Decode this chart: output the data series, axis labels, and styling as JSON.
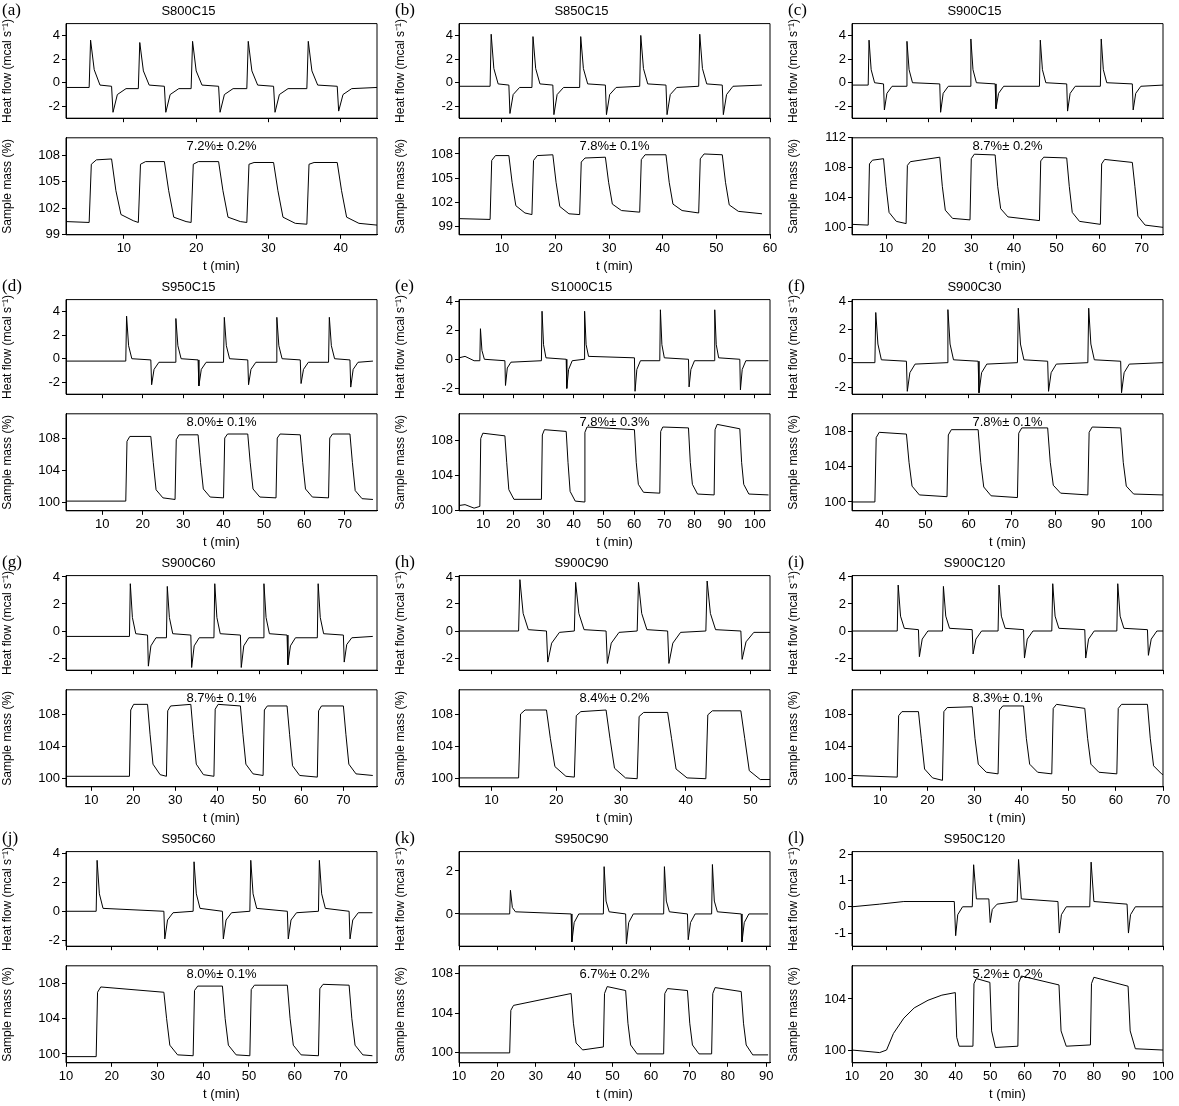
{
  "chart_data": [
    {
      "type": "line",
      "title": "S800C15",
      "ylabel": "Heat flow (mcal s⁻¹)",
      "annotations": [
        "(a)"
      ],
      "color": "#000000",
      "xlim": [
        2,
        45
      ],
      "xticks": [
        10,
        20,
        30,
        40
      ],
      "ylim": [
        -3,
        5
      ],
      "yticks": [
        -2,
        0,
        2,
        4
      ],
      "tick_labels": "y",
      "x": [
        2,
        5.2,
        5.4,
        5.9,
        6.7,
        8.3,
        8.5,
        9.1,
        10.3,
        12.0,
        12.2,
        12.7,
        13.5,
        15.6,
        15.8,
        16.4,
        17.6,
        19.3,
        19.5,
        20.0,
        20.8,
        23.1,
        23.3,
        23.9,
        25.1,
        27.0,
        27.2,
        27.7,
        28.5,
        30.7,
        30.9,
        31.5,
        32.7,
        35.3,
        35.5,
        36.0,
        36.8,
        39.5,
        39.7,
        40.3,
        41.5,
        45
      ],
      "values": [
        -0.4,
        -0.4,
        3.6,
        1.1,
        -0.2,
        -0.3,
        -2.5,
        -1.0,
        -0.5,
        -0.5,
        3.4,
        1.0,
        -0.2,
        -0.3,
        -2.5,
        -1.0,
        -0.5,
        -0.5,
        3.5,
        1.0,
        -0.2,
        -0.3,
        -2.5,
        -1.0,
        -0.5,
        -0.5,
        3.5,
        1.0,
        -0.2,
        -0.3,
        -2.5,
        -1.0,
        -0.5,
        -0.5,
        3.5,
        1.0,
        -0.2,
        -0.3,
        -2.4,
        -1.0,
        -0.5,
        -0.4
      ]
    },
    {
      "type": "line",
      "xlabel": "t (min)",
      "ylabel": "Sample mass (%)",
      "annotations": [
        "7.2%± 0.2%"
      ],
      "color": "#000000",
      "xlim": [
        2,
        45
      ],
      "xticks": [
        10,
        20,
        30,
        40
      ],
      "ylim": [
        99,
        110
      ],
      "yticks": [
        99,
        102,
        105,
        108
      ],
      "x": [
        2,
        5.2,
        5.5,
        6.2,
        8.3,
        8.9,
        9.6,
        11.3,
        12.0,
        12.3,
        13.0,
        15.6,
        16.2,
        16.9,
        18.6,
        19.3,
        19.6,
        20.3,
        23.1,
        23.7,
        24.4,
        26.1,
        27.0,
        27.3,
        28.0,
        30.7,
        31.3,
        32.0,
        33.7,
        35.3,
        35.6,
        36.3,
        39.5,
        40.1,
        40.8,
        42.5,
        45
      ],
      "values": [
        100.5,
        100.4,
        107.0,
        107.5,
        107.6,
        104.0,
        101.3,
        100.6,
        100.4,
        107.0,
        107.3,
        107.3,
        104.0,
        101.0,
        100.5,
        100.4,
        107.0,
        107.3,
        107.3,
        104.0,
        101.0,
        100.5,
        100.4,
        107.0,
        107.2,
        107.2,
        104.0,
        101.0,
        100.3,
        100.2,
        107.0,
        107.2,
        107.2,
        104.0,
        101.0,
        100.3,
        100.1
      ]
    },
    {
      "type": "line",
      "title": "S850C15",
      "ylabel": "Heat flow (mcal s⁻¹)",
      "annotations": [
        "(b)"
      ],
      "color": "#000000",
      "xlim": [
        2,
        60
      ],
      "xticks": [
        10,
        20,
        30,
        40,
        50,
        60
      ],
      "ylim": [
        -3,
        5
      ],
      "yticks": [
        -2,
        0,
        2,
        4
      ],
      "tick_labels": "y",
      "x": [
        2,
        7.8,
        8.0,
        8.5,
        9.3,
        11.3,
        11.5,
        12.1,
        13.3,
        15.6,
        15.8,
        16.3,
        17.1,
        19.5,
        19.7,
        20.3,
        21.5,
        24.5,
        24.7,
        25.2,
        26.0,
        29.3,
        29.5,
        30.1,
        31.3,
        35.7,
        35.9,
        36.4,
        37.2,
        40.6,
        40.8,
        41.4,
        42.6,
        46.7,
        46.9,
        47.4,
        48.2,
        51.1,
        51.3,
        51.9,
        53.1,
        58.5
      ],
      "values": [
        -0.3,
        -0.3,
        4.1,
        1.2,
        -0.1,
        -0.2,
        -2.6,
        -1.0,
        -0.4,
        -0.4,
        3.9,
        1.2,
        -0.1,
        -0.2,
        -2.7,
        -1.0,
        -0.4,
        -0.4,
        3.9,
        1.2,
        -0.1,
        -0.2,
        -2.7,
        -1.0,
        -0.4,
        -0.3,
        4.0,
        1.2,
        -0.1,
        -0.2,
        -2.7,
        -1.0,
        -0.4,
        -0.3,
        4.1,
        1.2,
        -0.1,
        -0.2,
        -2.7,
        -1.0,
        -0.3,
        -0.2
      ]
    },
    {
      "type": "line",
      "xlabel": "t (min)",
      "ylabel": "Sample mass (%)",
      "annotations": [
        "7.8%± 0.1%"
      ],
      "color": "#000000",
      "xlim": [
        2,
        60
      ],
      "xticks": [
        10,
        20,
        30,
        40,
        50,
        60
      ],
      "ylim": [
        98,
        110
      ],
      "yticks": [
        99,
        102,
        105,
        108
      ],
      "x": [
        2,
        7.8,
        8.1,
        8.8,
        11.3,
        11.9,
        12.6,
        14.3,
        15.6,
        15.9,
        16.6,
        19.5,
        20.1,
        20.8,
        22.5,
        24.5,
        24.8,
        25.5,
        29.3,
        29.9,
        30.6,
        32.3,
        35.7,
        36.0,
        36.7,
        40.6,
        41.2,
        41.9,
        43.6,
        46.7,
        47.0,
        47.7,
        51.1,
        51.7,
        52.4,
        54.1,
        58.5
      ],
      "values": [
        100.0,
        99.9,
        107.2,
        107.8,
        107.8,
        104.5,
        101.6,
        100.7,
        100.5,
        107.2,
        107.8,
        107.9,
        104.5,
        101.5,
        100.6,
        100.5,
        107.0,
        107.5,
        107.6,
        104.5,
        101.8,
        101.0,
        100.8,
        107.3,
        107.9,
        107.9,
        104.5,
        101.8,
        101.0,
        100.7,
        107.4,
        108.0,
        107.9,
        104.5,
        101.7,
        100.9,
        100.6
      ]
    },
    {
      "type": "line",
      "title": "S900C15",
      "ylabel": "Heat flow (mcal s⁻¹)",
      "annotations": [
        "(c)"
      ],
      "color": "#000000",
      "xlim": [
        2,
        75
      ],
      "xticks": [
        10,
        20,
        30,
        40,
        50,
        60,
        70
      ],
      "ylim": [
        -3,
        5
      ],
      "yticks": [
        -2,
        0,
        2,
        4
      ],
      "tick_labels": "y",
      "x": [
        2,
        5.8,
        6.0,
        6.5,
        7.3,
        9.4,
        9.6,
        10.2,
        11.4,
        14.7,
        14.9,
        15.4,
        16.2,
        22.6,
        22.8,
        23.4,
        24.6,
        29.7,
        29.9,
        30.4,
        31.2,
        35.6,
        35.8,
        36.4,
        37.6,
        46.0,
        46.2,
        46.7,
        47.5,
        52.4,
        52.6,
        53.2,
        54.4,
        60.3,
        60.5,
        61.0,
        61.8,
        67.8,
        68.0,
        68.6,
        69.8,
        75
      ],
      "values": [
        -0.2,
        -0.2,
        3.6,
        1.1,
        0.0,
        -0.1,
        -2.3,
        -0.9,
        -0.3,
        -0.3,
        3.5,
        1.1,
        0.0,
        -0.1,
        -2.5,
        -0.9,
        -0.3,
        -0.3,
        3.7,
        1.1,
        0.0,
        -0.1,
        -2.2,
        -0.9,
        -0.3,
        -0.3,
        3.6,
        1.1,
        0.0,
        -0.1,
        -2.4,
        -0.9,
        -0.3,
        -0.3,
        3.7,
        1.1,
        0.0,
        -0.1,
        -2.3,
        -0.9,
        -0.3,
        -0.2
      ]
    },
    {
      "type": "line",
      "xlabel": "t (min)",
      "ylabel": "Sample mass (%)",
      "annotations": [
        "8.7%± 0.2%"
      ],
      "color": "#000000",
      "xlim": [
        2,
        75
      ],
      "xticks": [
        10,
        20,
        30,
        40,
        50,
        60,
        70
      ],
      "ylim": [
        99,
        112
      ],
      "yticks": [
        100,
        104,
        108,
        112
      ],
      "x": [
        2,
        5.8,
        6.1,
        6.8,
        9.4,
        10.0,
        10.7,
        12.4,
        14.7,
        15.0,
        15.7,
        22.6,
        23.2,
        23.9,
        25.6,
        29.7,
        30.0,
        30.7,
        35.6,
        36.2,
        36.9,
        38.6,
        46.0,
        46.3,
        47.0,
        52.4,
        53.0,
        53.7,
        55.4,
        60.3,
        60.6,
        61.3,
        67.8,
        68.4,
        69.1,
        70.8,
        75
      ],
      "values": [
        100.4,
        100.3,
        108.5,
        109.0,
        109.2,
        105.5,
        102.0,
        100.8,
        100.5,
        108.3,
        108.8,
        109.4,
        105.5,
        102.3,
        101.2,
        101.0,
        109.2,
        109.8,
        109.7,
        105.5,
        102.5,
        101.4,
        100.9,
        108.9,
        109.4,
        109.3,
        105.5,
        102.0,
        100.8,
        100.4,
        108.5,
        109.1,
        108.7,
        105.5,
        101.5,
        100.3,
        100.0
      ]
    },
    {
      "type": "line",
      "title": "S950C15",
      "ylabel": "Heat flow (mcal s⁻¹)",
      "annotations": [
        "(d)"
      ],
      "color": "#000000",
      "xlim": [
        1,
        78
      ],
      "xticks": [
        10,
        20,
        30,
        40,
        50,
        60,
        70
      ],
      "ylim": [
        -3,
        5
      ],
      "yticks": [
        -2,
        0,
        2,
        4
      ],
      "tick_labels": "y",
      "x": [
        1,
        15.8,
        16.0,
        16.5,
        17.3,
        22.0,
        22.2,
        22.8,
        24.0,
        28.0,
        28.2,
        28.7,
        29.5,
        33.7,
        33.9,
        34.5,
        35.7,
        40.0,
        40.2,
        40.7,
        41.5,
        46.0,
        46.2,
        46.8,
        48.0,
        53.0,
        53.2,
        53.7,
        54.5,
        59.0,
        59.2,
        59.8,
        61.0,
        66.0,
        66.2,
        66.7,
        67.5,
        71.3,
        71.5,
        72.1,
        73.3,
        77
      ],
      "values": [
        -0.2,
        -0.2,
        3.6,
        1.1,
        0.0,
        -0.1,
        -2.2,
        -0.9,
        -0.3,
        -0.3,
        3.4,
        1.1,
        0.0,
        -0.1,
        -2.3,
        -0.9,
        -0.3,
        -0.3,
        3.5,
        1.1,
        0.0,
        -0.1,
        -2.2,
        -0.9,
        -0.3,
        -0.3,
        3.5,
        1.1,
        0.0,
        -0.1,
        -2.1,
        -0.9,
        -0.3,
        -0.3,
        3.5,
        1.1,
        0.0,
        -0.1,
        -2.4,
        -0.9,
        -0.3,
        -0.2
      ]
    },
    {
      "type": "line",
      "xlabel": "t (min)",
      "ylabel": "Sample mass (%)",
      "annotations": [
        "8.0%± 0.1%"
      ],
      "color": "#000000",
      "xlim": [
        1,
        78
      ],
      "xticks": [
        10,
        20,
        30,
        40,
        50,
        60,
        70
      ],
      "ylim": [
        99,
        111
      ],
      "yticks": [
        100,
        104,
        108
      ],
      "x": [
        1,
        15.8,
        16.1,
        16.8,
        22.0,
        22.6,
        23.3,
        25.0,
        28.0,
        28.3,
        29.0,
        33.7,
        34.3,
        35.0,
        36.7,
        40.0,
        40.3,
        41.0,
        46.0,
        46.6,
        47.3,
        49.0,
        53.0,
        53.3,
        54.0,
        59.0,
        59.6,
        60.3,
        62.0,
        66.0,
        66.3,
        67.0,
        71.3,
        71.9,
        72.6,
        74.3,
        77
      ],
      "values": [
        100.2,
        100.2,
        107.6,
        108.2,
        108.2,
        105.0,
        101.6,
        100.6,
        100.4,
        107.8,
        108.4,
        108.4,
        105.0,
        101.7,
        100.7,
        100.6,
        108.0,
        108.5,
        108.5,
        105.0,
        101.7,
        100.7,
        100.6,
        108.0,
        108.5,
        108.4,
        105.0,
        101.7,
        100.7,
        100.6,
        108.0,
        108.5,
        108.5,
        105.0,
        101.5,
        100.5,
        100.4
      ]
    },
    {
      "type": "line",
      "title": "S1000C15",
      "ylabel": "Heat flow (mcal s⁻¹)",
      "annotations": [
        "(e)"
      ],
      "color": "#000000",
      "xlim": [
        2,
        105
      ],
      "xticks": [
        10,
        20,
        30,
        40,
        50,
        60,
        70,
        80,
        90,
        100
      ],
      "ylim": [
        -2.4,
        4.1
      ],
      "yticks": [
        -2,
        0,
        2,
        4
      ],
      "tick_labels": "y",
      "x": [
        2,
        4,
        7,
        8.9,
        9.1,
        9.6,
        10.4,
        17.2,
        17.4,
        18.0,
        19.2,
        29.3,
        29.5,
        30.0,
        30.8,
        37.5,
        37.7,
        38.3,
        39.5,
        43.4,
        43.6,
        44.1,
        44.9,
        60.1,
        60.3,
        60.9,
        62.1,
        68.5,
        68.7,
        69.2,
        70.0,
        78.0,
        78.2,
        78.8,
        80.0,
        86.5,
        86.7,
        87.2,
        88.0,
        95.0,
        95.2,
        95.8,
        97.0,
        104.5
      ],
      "values": [
        0.1,
        0.2,
        -0.1,
        -0.1,
        2.1,
        0.6,
        0.0,
        -0.1,
        -1.8,
        -0.6,
        -0.2,
        -0.1,
        3.3,
        1.0,
        0.1,
        0.0,
        -2.0,
        -0.7,
        -0.1,
        0.0,
        3.3,
        1.0,
        0.2,
        0.1,
        -2.2,
        -0.7,
        -0.1,
        -0.1,
        3.4,
        1.0,
        0.1,
        0.0,
        -1.9,
        -0.7,
        -0.1,
        -0.1,
        3.4,
        1.0,
        0.1,
        0.0,
        -2.1,
        -0.7,
        -0.1,
        -0.1
      ]
    },
    {
      "type": "line",
      "xlabel": "t (min)",
      "ylabel": "Sample mass (%)",
      "annotations": [
        "7.8%± 0.3%"
      ],
      "color": "#000000",
      "xlim": [
        2,
        105
      ],
      "xticks": [
        10,
        20,
        30,
        40,
        50,
        60,
        70,
        80,
        90,
        100
      ],
      "ylim": [
        100,
        111
      ],
      "yticks": [
        100,
        104,
        108
      ],
      "x": [
        2,
        4,
        7,
        8.9,
        9.2,
        9.9,
        17.2,
        17.8,
        18.5,
        20.2,
        29.3,
        29.6,
        30.3,
        37.5,
        38.1,
        38.8,
        40.5,
        43.4,
        43.7,
        44.4,
        60.1,
        60.7,
        61.4,
        63.1,
        68.5,
        68.8,
        69.5,
        78.0,
        78.6,
        79.3,
        81.0,
        86.5,
        86.8,
        87.5,
        95.0,
        95.6,
        96.3,
        98.0,
        104.5
      ],
      "values": [
        100.6,
        100.7,
        100.3,
        100.5,
        108.2,
        108.8,
        108.5,
        105.5,
        102.4,
        101.3,
        101.3,
        108.6,
        109.2,
        109.0,
        105.5,
        102.2,
        101.1,
        101.0,
        108.9,
        109.5,
        109.2,
        105.5,
        103.0,
        102.1,
        102.0,
        109.0,
        109.5,
        109.4,
        105.5,
        103.0,
        101.9,
        101.8,
        109.2,
        109.8,
        109.3,
        105.5,
        103.0,
        101.9,
        101.8
      ]
    },
    {
      "type": "line",
      "title": "S900C30",
      "ylabel": "Heat flow (mcal s⁻¹)",
      "annotations": [
        "(f)"
      ],
      "color": "#000000",
      "xlim": [
        33,
        105
      ],
      "xticks": [
        40,
        50,
        60,
        70,
        80,
        90,
        100
      ],
      "ylim": [
        -2.5,
        4.1
      ],
      "yticks": [
        -2,
        0,
        2,
        4
      ],
      "tick_labels": "y",
      "x": [
        33,
        38.3,
        38.5,
        39.0,
        39.8,
        45.6,
        45.8,
        46.4,
        47.6,
        55.0,
        55.2,
        55.7,
        56.5,
        62.2,
        62.4,
        63.0,
        64.2,
        71.3,
        71.5,
        72.0,
        72.8,
        78.3,
        78.5,
        79.1,
        80.3,
        87.6,
        87.8,
        88.3,
        89.1,
        95.2,
        95.4,
        96.0,
        97.2,
        105
      ],
      "values": [
        -0.3,
        -0.3,
        3.2,
        1.0,
        -0.1,
        -0.2,
        -2.3,
        -1.0,
        -0.4,
        -0.3,
        3.4,
        1.0,
        -0.1,
        -0.2,
        -2.4,
        -1.0,
        -0.4,
        -0.3,
        3.5,
        1.0,
        -0.1,
        -0.2,
        -2.3,
        -1.0,
        -0.4,
        -0.3,
        3.5,
        1.0,
        -0.1,
        -0.2,
        -2.4,
        -1.0,
        -0.4,
        -0.3
      ]
    },
    {
      "type": "line",
      "xlabel": "t (min)",
      "ylabel": "Sample mass (%)",
      "annotations": [
        "7.8%± 0.1%"
      ],
      "color": "#000000",
      "xlim": [
        33,
        105
      ],
      "xticks": [
        40,
        50,
        60,
        70,
        80,
        90,
        100
      ],
      "ylim": [
        99,
        110
      ],
      "yticks": [
        100,
        104,
        108
      ],
      "x": [
        33,
        38.3,
        38.6,
        39.3,
        45.6,
        46.2,
        46.9,
        48.6,
        55.0,
        55.3,
        56.0,
        62.2,
        62.8,
        63.5,
        65.2,
        71.3,
        71.6,
        72.3,
        78.3,
        78.9,
        79.6,
        81.3,
        87.6,
        87.9,
        88.6,
        95.2,
        95.8,
        96.5,
        98.2,
        105
      ],
      "values": [
        100.0,
        100.0,
        107.3,
        107.9,
        107.7,
        104.5,
        101.8,
        100.8,
        100.6,
        107.6,
        108.2,
        108.2,
        104.5,
        101.7,
        100.7,
        100.5,
        107.8,
        108.4,
        108.4,
        104.5,
        101.9,
        101.0,
        100.8,
        107.9,
        108.5,
        108.4,
        104.5,
        101.8,
        100.9,
        100.8
      ]
    },
    {
      "type": "line",
      "title": "S900C60",
      "ylabel": "Heat flow (mcal s⁻¹)",
      "annotations": [
        "(g)"
      ],
      "color": "#000000",
      "xlim": [
        4,
        78
      ],
      "xticks": [
        10,
        20,
        30,
        40,
        50,
        60,
        70
      ],
      "ylim": [
        -2.9,
        4.1
      ],
      "yticks": [
        -2,
        0,
        2,
        4
      ],
      "tick_labels": "y",
      "x": [
        4,
        19.1,
        19.3,
        19.8,
        20.6,
        23.4,
        23.6,
        24.2,
        25.4,
        27.9,
        28.1,
        28.6,
        29.4,
        33.7,
        33.9,
        34.5,
        35.7,
        39.2,
        39.4,
        39.9,
        40.7,
        45.5,
        45.7,
        46.3,
        47.5,
        50.9,
        51.1,
        51.6,
        52.4,
        56.6,
        56.8,
        57.4,
        58.6,
        63.8,
        64.0,
        64.5,
        65.3,
        70.0,
        70.2,
        70.8,
        72.0,
        77
      ],
      "values": [
        -0.4,
        -0.4,
        3.5,
        1.0,
        -0.2,
        -0.3,
        -2.6,
        -1.1,
        -0.5,
        -0.5,
        3.3,
        1.0,
        -0.2,
        -0.3,
        -2.7,
        -1.1,
        -0.5,
        -0.5,
        3.5,
        1.0,
        -0.2,
        -0.3,
        -2.7,
        -1.1,
        -0.5,
        -0.5,
        3.5,
        1.0,
        -0.2,
        -0.3,
        -2.5,
        -1.1,
        -0.5,
        -0.5,
        3.5,
        1.0,
        -0.2,
        -0.3,
        -2.3,
        -1.0,
        -0.5,
        -0.4
      ]
    },
    {
      "type": "line",
      "xlabel": "t (min)",
      "ylabel": "Sample mass (%)",
      "annotations": [
        "8.7%± 0.1%"
      ],
      "color": "#000000",
      "xlim": [
        4,
        78
      ],
      "xticks": [
        10,
        20,
        30,
        40,
        50,
        60,
        70
      ],
      "ylim": [
        99,
        111
      ],
      "yticks": [
        100,
        104,
        108
      ],
      "x": [
        4,
        19.1,
        19.4,
        20.1,
        23.4,
        24.0,
        24.7,
        26.4,
        27.9,
        28.2,
        28.9,
        33.7,
        34.3,
        35.0,
        36.7,
        39.2,
        39.5,
        40.2,
        45.5,
        46.1,
        46.8,
        48.5,
        50.9,
        51.2,
        51.9,
        56.6,
        57.2,
        57.9,
        59.6,
        63.8,
        64.1,
        64.8,
        70.0,
        70.6,
        71.3,
        73.0,
        77
      ],
      "values": [
        100.3,
        100.3,
        108.5,
        109.2,
        109.2,
        105.5,
        101.8,
        100.5,
        100.3,
        108.4,
        109.0,
        109.2,
        105.5,
        101.8,
        100.5,
        100.3,
        108.6,
        109.2,
        109.0,
        105.5,
        101.8,
        100.6,
        100.4,
        108.5,
        109.0,
        109.0,
        105.5,
        101.6,
        100.4,
        100.2,
        108.4,
        109.0,
        109.0,
        105.5,
        101.8,
        100.6,
        100.4
      ]
    },
    {
      "type": "line",
      "title": "S900C90",
      "ylabel": "Heat flow (mcal s⁻¹)",
      "annotations": [
        "(h)"
      ],
      "color": "#000000",
      "xlim": [
        5,
        53
      ],
      "xticks": [
        10,
        20,
        30,
        40,
        50
      ],
      "ylim": [
        -2.9,
        4.1
      ],
      "yticks": [
        -2,
        0,
        2,
        4
      ],
      "tick_labels": "y",
      "x": [
        5,
        14.2,
        14.4,
        14.9,
        15.7,
        18.5,
        18.7,
        19.3,
        20.5,
        22.8,
        23.0,
        23.5,
        24.3,
        27.7,
        27.9,
        28.5,
        29.7,
        32.5,
        32.7,
        33.2,
        34.0,
        37.2,
        37.4,
        38.0,
        39.2,
        43.1,
        43.3,
        43.8,
        44.6,
        48.5,
        48.7,
        49.3,
        50.5,
        53
      ],
      "values": [
        0.0,
        0.0,
        3.8,
        1.3,
        0.1,
        0.0,
        -2.3,
        -0.9,
        -0.1,
        0.0,
        3.6,
        1.3,
        0.1,
        0.0,
        -2.4,
        -0.9,
        -0.1,
        0.0,
        3.6,
        1.3,
        0.1,
        0.0,
        -2.4,
        -0.9,
        -0.1,
        0.0,
        3.7,
        1.3,
        0.1,
        0.0,
        -2.1,
        -0.8,
        -0.1,
        -0.1
      ]
    },
    {
      "type": "line",
      "xlabel": "t (min)",
      "ylabel": "Sample mass (%)",
      "annotations": [
        "8.4%± 0.2%"
      ],
      "color": "#000000",
      "xlim": [
        5,
        53
      ],
      "xticks": [
        10,
        20,
        30,
        40,
        50
      ],
      "ylim": [
        99,
        111
      ],
      "yticks": [
        100,
        104,
        108
      ],
      "x": [
        5,
        14.2,
        14.5,
        15.2,
        18.5,
        19.1,
        19.8,
        21.5,
        22.8,
        23.1,
        23.8,
        27.7,
        28.3,
        29.0,
        30.7,
        32.5,
        32.8,
        33.5,
        37.2,
        37.8,
        38.5,
        40.2,
        43.1,
        43.4,
        44.1,
        48.5,
        49.1,
        49.8,
        51.5,
        53
      ],
      "values": [
        100.1,
        100.1,
        108.0,
        108.5,
        108.5,
        105.0,
        101.5,
        100.3,
        100.2,
        107.8,
        108.3,
        108.5,
        105.0,
        101.3,
        100.1,
        100.0,
        107.7,
        108.2,
        108.2,
        105.0,
        101.2,
        100.1,
        100.0,
        107.9,
        108.4,
        108.4,
        105.0,
        101.0,
        99.9,
        99.9
      ]
    },
    {
      "type": "line",
      "title": "S900C120",
      "ylabel": "Heat flow (mcal s⁻¹)",
      "annotations": [
        "(i)"
      ],
      "color": "#000000",
      "xlim": [
        4,
        70
      ],
      "xticks": [
        10,
        20,
        30,
        40,
        50,
        60,
        70
      ],
      "ylim": [
        -2.9,
        4.1
      ],
      "yticks": [
        -2,
        0,
        2,
        4
      ],
      "tick_labels": "y",
      "x": [
        4,
        13.6,
        13.8,
        14.3,
        15.1,
        18.1,
        18.3,
        18.9,
        20.1,
        23.2,
        23.4,
        23.9,
        24.7,
        29.5,
        29.7,
        30.3,
        31.5,
        35.0,
        35.2,
        35.7,
        36.5,
        40.4,
        40.6,
        41.2,
        42.4,
        46.4,
        46.6,
        47.1,
        47.9,
        53.4,
        53.6,
        54.2,
        55.4,
        60.2,
        60.4,
        60.9,
        61.7,
        66.7,
        66.9,
        67.5,
        68.7,
        70
      ],
      "values": [
        0.0,
        0.0,
        3.4,
        1.1,
        0.2,
        0.1,
        -1.9,
        -0.6,
        0.0,
        0.0,
        3.3,
        1.1,
        0.2,
        0.1,
        -1.7,
        -0.6,
        0.0,
        0.0,
        3.4,
        1.1,
        0.2,
        0.1,
        -2.0,
        -0.6,
        0.0,
        0.0,
        3.5,
        1.1,
        0.2,
        0.1,
        -2.0,
        -0.6,
        0.0,
        0.0,
        3.5,
        1.1,
        0.2,
        0.1,
        -1.8,
        -0.6,
        0.0,
        0.0
      ]
    },
    {
      "type": "line",
      "xlabel": "t (min)",
      "ylabel": "Sample mass (%)",
      "annotations": [
        "8.3%± 0.1%"
      ],
      "color": "#000000",
      "xlim": [
        4,
        70
      ],
      "xticks": [
        10,
        20,
        30,
        40,
        50,
        60,
        70
      ],
      "ylim": [
        99,
        111
      ],
      "yticks": [
        100,
        104,
        108
      ],
      "x": [
        4,
        13.6,
        13.9,
        14.6,
        18.1,
        18.7,
        19.4,
        21.1,
        23.2,
        23.5,
        24.2,
        29.5,
        30.1,
        30.8,
        32.5,
        35.0,
        35.3,
        36.0,
        40.4,
        41.0,
        41.7,
        43.4,
        46.4,
        46.7,
        47.4,
        53.4,
        54.0,
        54.7,
        56.4,
        60.2,
        60.5,
        61.2,
        66.7,
        67.3,
        68.0,
        69.7,
        70
      ],
      "values": [
        100.4,
        100.2,
        107.8,
        108.3,
        108.3,
        105.0,
        101.2,
        100.1,
        99.8,
        108.3,
        108.8,
        108.9,
        105.0,
        101.8,
        100.8,
        100.6,
        108.5,
        109.0,
        109.0,
        105.0,
        101.8,
        100.8,
        100.6,
        108.7,
        109.2,
        108.7,
        105.0,
        101.8,
        100.8,
        100.6,
        108.7,
        109.2,
        109.2,
        105.0,
        101.6,
        100.6,
        100.5
      ]
    },
    {
      "type": "line",
      "title": "S950C60",
      "ylabel": "Heat flow (mcal s⁻¹)",
      "annotations": [
        "(j)"
      ],
      "color": "#000000",
      "xlim": [
        10,
        78
      ],
      "xticks": [
        10,
        20,
        30,
        40,
        50,
        60,
        70
      ],
      "ylim": [
        -2.4,
        4.1
      ],
      "yticks": [
        -2,
        0,
        2,
        4
      ],
      "tick_labels": "y",
      "x": [
        10,
        16.6,
        16.8,
        17.3,
        18.1,
        31.4,
        31.6,
        32.2,
        33.4,
        37.8,
        38.0,
        38.5,
        39.3,
        44.2,
        44.4,
        45.0,
        46.2,
        50.2,
        50.4,
        50.9,
        51.7,
        58.4,
        58.6,
        59.2,
        60.4,
        65.2,
        65.4,
        65.9,
        66.7,
        71.9,
        72.1,
        72.7,
        73.9,
        77
      ],
      "values": [
        0.0,
        0.0,
        3.5,
        1.2,
        0.2,
        0.0,
        -1.9,
        -0.6,
        -0.1,
        0.0,
        3.4,
        1.2,
        0.2,
        0.0,
        -1.9,
        -0.6,
        -0.1,
        0.0,
        3.5,
        1.2,
        0.2,
        0.0,
        -1.9,
        -0.6,
        -0.1,
        0.0,
        3.5,
        1.2,
        0.2,
        0.0,
        -1.9,
        -0.6,
        -0.1,
        -0.1
      ]
    },
    {
      "type": "line",
      "xlabel": "t (min)",
      "ylabel": "Sample mass (%)",
      "annotations": [
        "8.0%± 0.1%"
      ],
      "color": "#000000",
      "xlim": [
        10,
        78
      ],
      "xticks": [
        10,
        20,
        30,
        40,
        50,
        60,
        70
      ],
      "ylim": [
        99,
        110
      ],
      "yticks": [
        100,
        104,
        108
      ],
      "x": [
        10,
        16.6,
        16.9,
        17.6,
        31.4,
        32.0,
        32.7,
        34.4,
        37.8,
        38.1,
        38.8,
        44.2,
        44.8,
        45.5,
        47.2,
        50.2,
        50.5,
        51.2,
        58.4,
        59.0,
        59.7,
        61.4,
        65.2,
        65.5,
        66.2,
        71.9,
        72.5,
        73.2,
        74.9,
        77
      ],
      "values": [
        99.7,
        99.7,
        107.0,
        107.6,
        107.0,
        104.0,
        101.0,
        99.9,
        99.8,
        107.2,
        107.7,
        107.7,
        104.0,
        101.0,
        99.9,
        99.8,
        107.3,
        107.8,
        107.8,
        104.0,
        101.0,
        99.9,
        99.8,
        107.4,
        107.9,
        107.8,
        104.0,
        101.0,
        99.9,
        99.8
      ]
    },
    {
      "type": "line",
      "title": "S950C90",
      "ylabel": "Heat flow (mcal s⁻¹)",
      "annotations": [
        "(k)"
      ],
      "color": "#000000",
      "xlim": [
        10,
        91
      ],
      "xticks": [
        10,
        20,
        30,
        40,
        50,
        60,
        70,
        80,
        90
      ],
      "ylim": [
        -1.5,
        2.9
      ],
      "yticks": [
        0,
        2
      ],
      "tick_labels": "y",
      "x": [
        10,
        23.2,
        23.4,
        23.9,
        24.7,
        39.2,
        39.4,
        40.0,
        41.2,
        47.6,
        47.8,
        48.3,
        49.1,
        53.4,
        53.6,
        54.2,
        55.4,
        63.3,
        63.5,
        64.0,
        64.8,
        69.5,
        69.7,
        70.3,
        71.5,
        75.8,
        76.0,
        76.5,
        77.3,
        83.5,
        83.7,
        84.3,
        85.5,
        90.5
      ],
      "values": [
        0.0,
        0.0,
        1.1,
        0.3,
        0.1,
        0.0,
        -1.3,
        -0.4,
        0.0,
        0.0,
        2.2,
        0.6,
        0.1,
        0.0,
        -1.4,
        -0.4,
        0.0,
        0.0,
        2.2,
        0.6,
        0.1,
        0.0,
        -1.2,
        -0.4,
        0.0,
        0.0,
        2.3,
        0.6,
        0.1,
        0.0,
        -1.3,
        -0.4,
        0.0,
        0.0
      ]
    },
    {
      "type": "line",
      "xlabel": "t (min)",
      "ylabel": "Sample mass (%)",
      "annotations": [
        "6.7%± 0.2%"
      ],
      "color": "#000000",
      "xlim": [
        10,
        91
      ],
      "xticks": [
        10,
        20,
        30,
        40,
        50,
        60,
        70,
        80,
        90
      ],
      "ylim": [
        99,
        108.8
      ],
      "yticks": [
        100,
        104,
        108
      ],
      "x": [
        10,
        23.2,
        23.5,
        24.2,
        39.2,
        39.8,
        40.5,
        42.2,
        47.6,
        47.9,
        48.6,
        53.4,
        54.0,
        54.7,
        56.4,
        63.3,
        63.6,
        64.3,
        69.5,
        70.1,
        70.8,
        72.5,
        75.8,
        76.1,
        76.7,
        83.5,
        84.1,
        84.8,
        86.5,
        90.5
      ],
      "values": [
        100.0,
        100.0,
        104.3,
        104.8,
        106.0,
        103.0,
        101.0,
        100.3,
        100.6,
        106.0,
        106.7,
        106.3,
        103.0,
        100.8,
        99.9,
        99.9,
        106.0,
        106.5,
        106.3,
        103.0,
        100.8,
        99.9,
        99.9,
        106.0,
        106.6,
        106.2,
        103.0,
        100.8,
        99.8,
        99.8
      ]
    },
    {
      "type": "line",
      "title": "S950C120",
      "ylabel": "Heat flow (mcal s⁻¹)",
      "annotations": [
        "(l)"
      ],
      "color": "#000000",
      "xlim": [
        10,
        100
      ],
      "xticks": [
        10,
        20,
        30,
        40,
        50,
        60,
        70,
        80,
        90,
        100
      ],
      "ylim": [
        -1.5,
        2.1
      ],
      "yticks": [
        -1,
        0,
        1,
        2
      ],
      "tick_labels": "y",
      "x": [
        10,
        18,
        25,
        39.6,
        40.0,
        40.6,
        42.0,
        44.8,
        45.2,
        46.0,
        49.6,
        50.0,
        50.6,
        52.0,
        57.8,
        58.2,
        59.0,
        69.6,
        70.0,
        70.6,
        72.0,
        78.8,
        79.2,
        80.0,
        89.6,
        90.0,
        90.6,
        92.0,
        100
      ],
      "values": [
        0.0,
        0.1,
        0.2,
        0.2,
        -1.1,
        -0.3,
        0.0,
        0.0,
        1.6,
        0.3,
        0.3,
        -0.6,
        -0.1,
        0.1,
        0.2,
        1.8,
        0.3,
        0.2,
        -1.0,
        -0.3,
        0.0,
        0.0,
        1.7,
        0.2,
        0.1,
        -1.0,
        -0.3,
        0.0,
        0.0
      ]
    },
    {
      "type": "line",
      "xlabel": "t (min)",
      "ylabel": "Sample mass (%)",
      "annotations": [
        "5.2%± 0.2%"
      ],
      "color": "#000000",
      "xlim": [
        10,
        100
      ],
      "xticks": [
        10,
        20,
        30,
        40,
        50,
        60,
        70,
        80,
        90,
        100
      ],
      "ylim": [
        99,
        106.6
      ],
      "yticks": [
        100,
        104
      ],
      "x": [
        10,
        18,
        20,
        22,
        25,
        28,
        32,
        36,
        39.9,
        40.3,
        41,
        45,
        45.3,
        46,
        49.9,
        50.4,
        51.5,
        58,
        58.3,
        59,
        69.9,
        70.5,
        72,
        79,
        79.3,
        80,
        89.9,
        90.5,
        92,
        100
      ],
      "values": [
        100.0,
        99.8,
        100.0,
        101.3,
        102.5,
        103.3,
        103.9,
        104.3,
        104.5,
        101.0,
        100.3,
        100.3,
        105.2,
        105.6,
        105.3,
        101.5,
        100.2,
        100.3,
        105.3,
        105.8,
        105.1,
        101.5,
        100.3,
        100.4,
        105.2,
        105.7,
        105.0,
        101.5,
        100.1,
        100.0
      ]
    }
  ]
}
